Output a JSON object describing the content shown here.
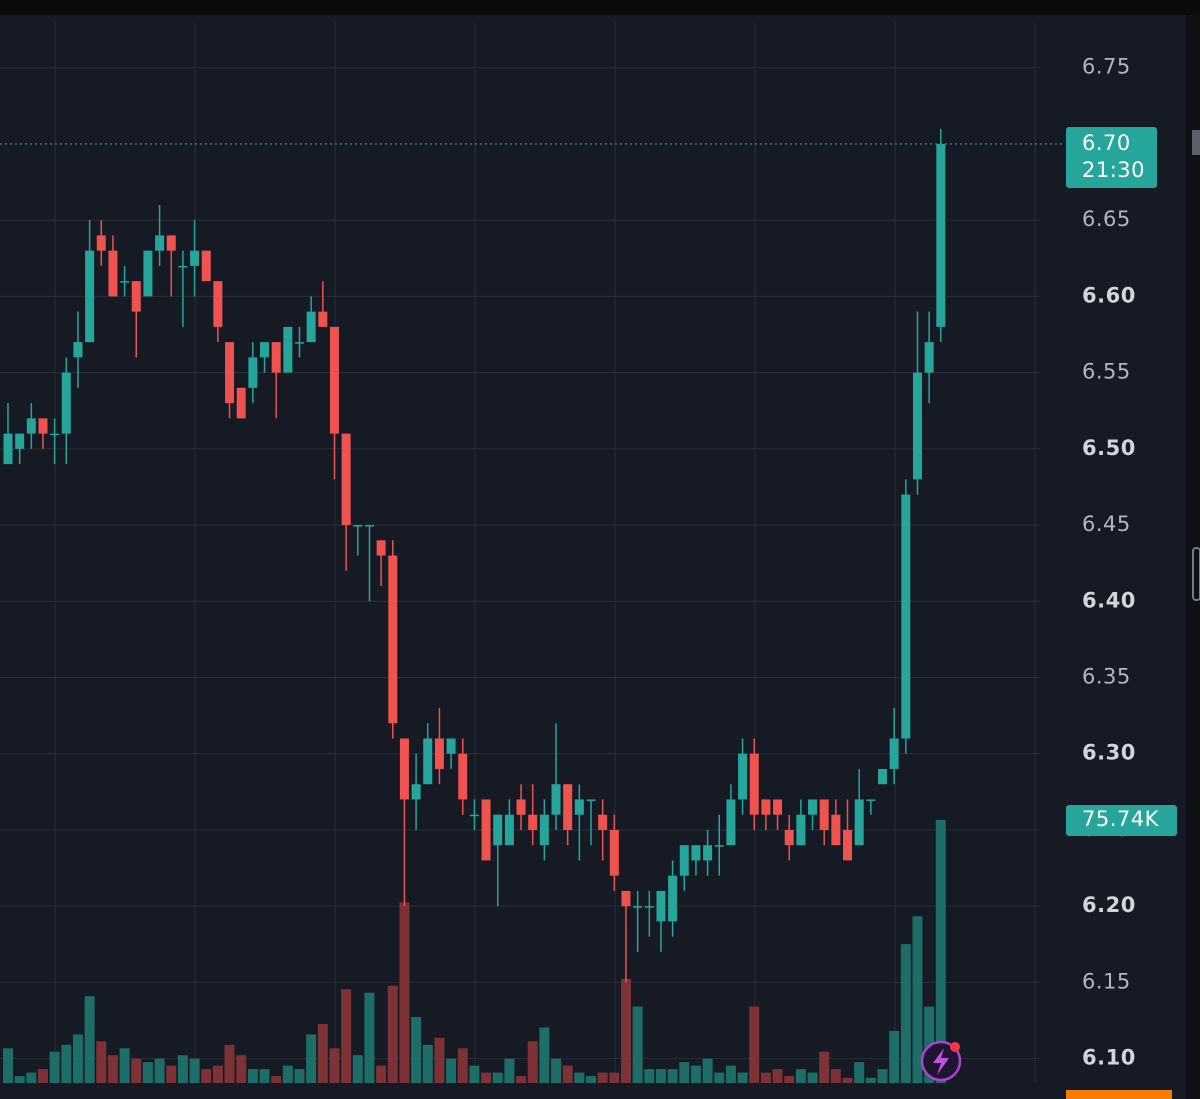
{
  "chart_data": {
    "type": "candlestick",
    "ylim": [
      6.084,
      6.78
    ],
    "yticks": [
      6.75,
      {
        "value": 6.6,
        "label": "6.60"
      },
      6.65,
      6.55,
      {
        "value": 6.5,
        "label": "6.50"
      },
      6.45,
      {
        "value": 6.4,
        "label": "6.40"
      },
      6.35,
      {
        "value": 6.3,
        "label": "6.30"
      },
      6.25,
      {
        "value": 6.2,
        "label": "6.20"
      },
      6.15,
      {
        "value": 6.1,
        "label": "6.10"
      }
    ],
    "grid": true,
    "up_color": "#26a69a",
    "down_color": "#ef5350",
    "volume_up_color": "#1e6e68",
    "volume_down_color": "#7d3235",
    "y2lim": [
      0,
      305.5
    ],
    "open": [
      6.49,
      6.5,
      6.51,
      6.52,
      6.51,
      6.51,
      6.56,
      6.57,
      6.64,
      6.63,
      6.61,
      6.61,
      6.6,
      6.63,
      6.64,
      6.62,
      6.62,
      6.63,
      6.61,
      6.57,
      6.54,
      6.54,
      6.56,
      6.57,
      6.55,
      6.57,
      6.57,
      6.59,
      6.58,
      6.51,
      6.45,
      6.45,
      6.44,
      6.43,
      6.31,
      6.27,
      6.28,
      6.31,
      6.3,
      6.3,
      6.26,
      6.27,
      6.24,
      6.24,
      6.27,
      6.26,
      6.24,
      6.26,
      6.28,
      6.26,
      6.27,
      6.26,
      6.25,
      6.21,
      6.2,
      6.2,
      6.19,
      6.19,
      6.22,
      6.23,
      6.23,
      6.24,
      6.24,
      6.27,
      6.3,
      6.27,
      6.27,
      6.25,
      6.24,
      6.26,
      6.27,
      6.26,
      6.25,
      6.24,
      6.27,
      6.28,
      6.29,
      6.31,
      6.48,
      6.55,
      6.58
    ],
    "high": [
      6.53,
      6.51,
      6.53,
      6.52,
      6.52,
      6.56,
      6.59,
      6.65,
      6.65,
      6.64,
      6.62,
      6.61,
      6.63,
      6.66,
      6.64,
      6.63,
      6.65,
      6.63,
      6.61,
      6.57,
      6.54,
      6.57,
      6.57,
      6.57,
      6.58,
      6.58,
      6.6,
      6.61,
      6.58,
      6.51,
      6.45,
      6.45,
      6.44,
      6.44,
      6.31,
      6.3,
      6.32,
      6.33,
      6.31,
      6.31,
      6.27,
      6.27,
      6.26,
      6.27,
      6.28,
      6.28,
      6.27,
      6.32,
      6.28,
      6.28,
      6.27,
      6.27,
      6.26,
      6.21,
      6.21,
      6.21,
      6.21,
      6.23,
      6.24,
      6.24,
      6.25,
      6.26,
      6.28,
      6.31,
      6.31,
      6.27,
      6.27,
      6.26,
      6.27,
      6.27,
      6.27,
      6.27,
      6.27,
      6.29,
      6.27,
      6.29,
      6.33,
      6.48,
      6.59,
      6.59,
      6.71
    ],
    "low": [
      6.49,
      6.49,
      6.5,
      6.5,
      6.49,
      6.49,
      6.54,
      6.57,
      6.62,
      6.6,
      6.6,
      6.56,
      6.6,
      6.62,
      6.6,
      6.58,
      6.6,
      6.61,
      6.57,
      6.52,
      6.52,
      6.53,
      6.55,
      6.52,
      6.55,
      6.56,
      6.57,
      6.58,
      6.48,
      6.42,
      6.43,
      6.4,
      6.41,
      6.31,
      6.2,
      6.25,
      6.28,
      6.28,
      6.29,
      6.26,
      6.25,
      6.23,
      6.2,
      6.24,
      6.25,
      6.24,
      6.23,
      6.25,
      6.24,
      6.23,
      6.24,
      6.23,
      6.21,
      6.15,
      6.17,
      6.18,
      6.17,
      6.18,
      6.21,
      6.22,
      6.22,
      6.22,
      6.24,
      6.26,
      6.25,
      6.25,
      6.25,
      6.23,
      6.24,
      6.25,
      6.24,
      6.24,
      6.23,
      6.24,
      6.26,
      6.28,
      6.28,
      6.3,
      6.47,
      6.53,
      6.57
    ],
    "close": [
      6.51,
      6.51,
      6.52,
      6.51,
      6.51,
      6.55,
      6.57,
      6.63,
      6.63,
      6.6,
      6.61,
      6.59,
      6.63,
      6.64,
      6.63,
      6.62,
      6.63,
      6.61,
      6.58,
      6.53,
      6.52,
      6.56,
      6.57,
      6.55,
      6.58,
      6.57,
      6.59,
      6.58,
      6.51,
      6.45,
      6.45,
      6.45,
      6.43,
      6.32,
      6.27,
      6.28,
      6.31,
      6.29,
      6.31,
      6.27,
      6.26,
      6.23,
      6.26,
      6.26,
      6.26,
      6.25,
      6.26,
      6.28,
      6.25,
      6.27,
      6.27,
      6.25,
      6.22,
      6.2,
      6.2,
      6.2,
      6.21,
      6.22,
      6.24,
      6.24,
      6.24,
      6.24,
      6.27,
      6.3,
      6.26,
      6.26,
      6.26,
      6.24,
      6.26,
      6.27,
      6.25,
      6.24,
      6.23,
      6.27,
      6.27,
      6.29,
      6.31,
      6.47,
      6.55,
      6.57,
      6.7
    ],
    "volume": [
      10,
      2,
      3,
      4,
      9,
      11,
      14,
      25,
      12,
      8,
      10,
      7,
      6,
      7,
      5,
      8,
      7,
      4,
      5,
      11,
      8,
      4,
      4,
      2,
      5,
      4,
      14,
      17,
      10,
      27,
      8,
      26,
      5,
      28,
      52,
      19,
      11,
      13,
      7,
      10,
      5,
      3,
      3,
      7,
      2,
      12,
      16,
      7,
      5,
      3,
      2,
      3,
      3,
      30,
      22,
      4,
      4,
      4,
      6,
      5,
      7,
      3,
      5,
      3,
      22,
      3,
      4,
      2,
      4,
      3,
      9,
      4,
      1.5,
      6,
      1.5,
      4,
      15,
      40,
      48,
      22,
      75.74
    ],
    "last_price": {
      "value": 6.7,
      "label": "6.70",
      "time": "21:30"
    },
    "volume_label": {
      "value": 75.74,
      "label": "75.74K"
    }
  }
}
